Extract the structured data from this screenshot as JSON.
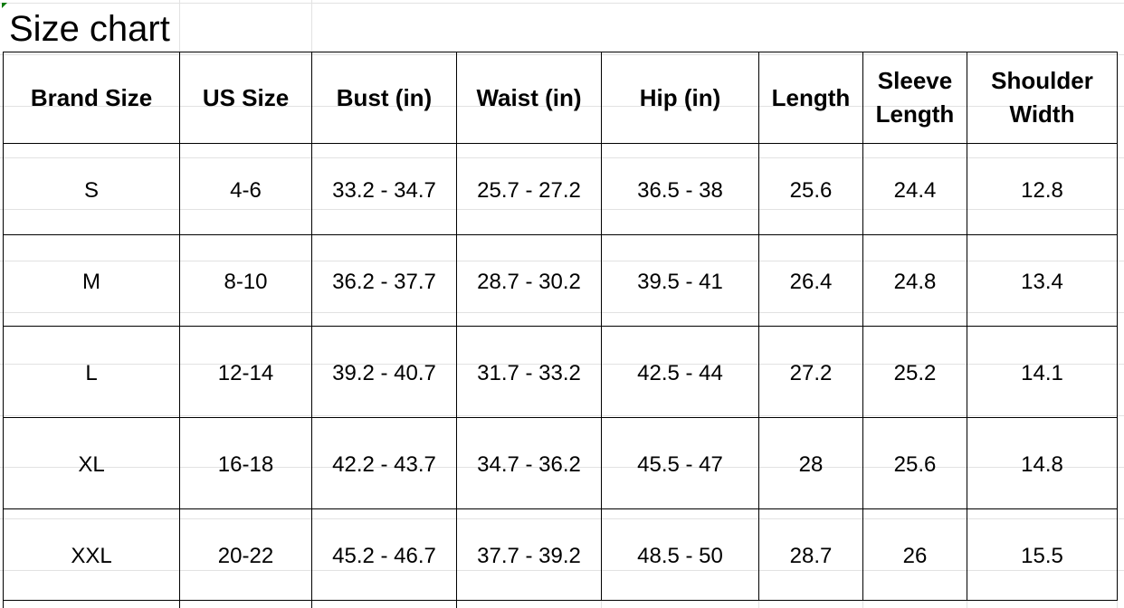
{
  "title": "Size chart",
  "headers": [
    "Brand Size",
    "US Size",
    "Bust (in)",
    "Waist (in)",
    "Hip (in)",
    "Length",
    "Sleeve Length",
    "Shoulder Width"
  ],
  "rows": [
    [
      "S",
      "4-6",
      "33.2 - 34.7",
      "25.7 - 27.2",
      "36.5 - 38",
      "25.6",
      "24.4",
      "12.8"
    ],
    [
      "M",
      "8-10",
      "36.2 - 37.7",
      "28.7 - 30.2",
      "39.5 - 41",
      "26.4",
      "24.8",
      "13.4"
    ],
    [
      "L",
      "12-14",
      "39.2 - 40.7",
      "31.7 - 33.2",
      "42.5 - 44",
      "27.2",
      "25.2",
      "14.1"
    ],
    [
      "XL",
      "16-18",
      "42.2 - 43.7",
      "34.7 - 36.2",
      "45.5 - 47",
      "28",
      "25.6",
      "14.8"
    ],
    [
      "XXL",
      "20-22",
      "45.2 - 46.7",
      "37.7 - 39.2",
      "48.5 - 50",
      "28.7",
      "26",
      "15.5"
    ]
  ],
  "colors": {
    "gridline": "#e2e2e2",
    "border": "#000000",
    "cell_marker": "#0a7a0a"
  }
}
